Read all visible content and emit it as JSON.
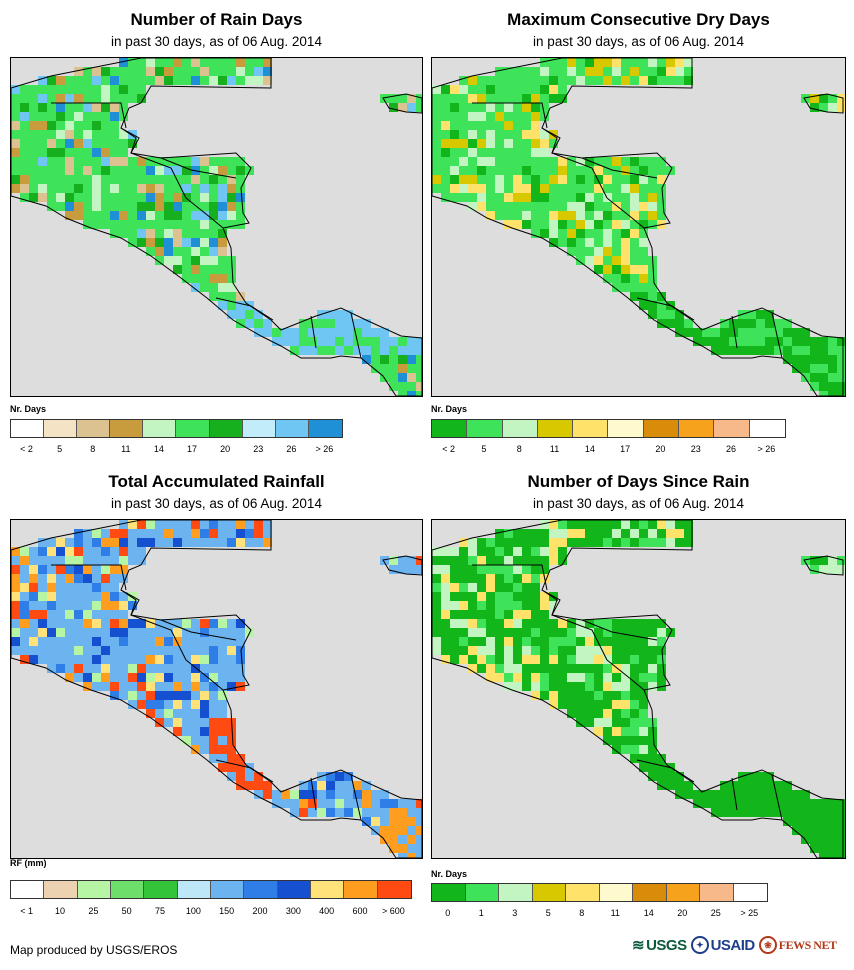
{
  "panels": [
    {
      "title": "Number of Rain Days",
      "subtitle": "in past 30 days, as of 06 Aug. 2014",
      "legend_title": "Nr. Days",
      "legend_colors": [
        "#ffffff",
        "#f4e3c4",
        "#dcc290",
        "#c89b3c",
        "#c3f5c3",
        "#3fe35a",
        "#16b01f",
        "#c3ecfa",
        "#6fc6f2",
        "#1f8fd6"
      ],
      "legend_ticks": [
        "< 2",
        "5",
        "8",
        "11",
        "14",
        "17",
        "20",
        "23",
        "26",
        "> 26"
      ],
      "base_color": "#3fe35a",
      "accent_colors": [
        "#c3f5c3",
        "#c89b3c",
        "#dcc290",
        "#16b01f",
        "#6fc6f2",
        "#1f8fd6"
      ]
    },
    {
      "title": "Maximum Consecutive Dry Days",
      "subtitle": "in past 30 days, as of 06 Aug. 2014",
      "legend_title": "Nr. Days",
      "legend_colors": [
        "#12b51a",
        "#3fe35a",
        "#c3f5c3",
        "#d8c800",
        "#ffe26a",
        "#fffacd",
        "#d98c0a",
        "#f7a21c",
        "#f8b98a",
        "#ffffff"
      ],
      "legend_ticks": [
        "< 2",
        "5",
        "8",
        "11",
        "14",
        "17",
        "20",
        "23",
        "26",
        "> 26"
      ],
      "base_color": "#3fe35a",
      "accent_colors": [
        "#c3f5c3",
        "#12b51a",
        "#ffe26a",
        "#d8c800"
      ]
    },
    {
      "title": "Total Accumulated Rainfall",
      "subtitle": "in past 30 days, as of 06 Aug. 2014",
      "legend_title": "RF (mm)",
      "legend_colors": [
        "#ffffff",
        "#ecd2b0",
        "#b6f5a3",
        "#6ede6a",
        "#33c43a",
        "#bde6f7",
        "#6cb4f0",
        "#2f7ee8",
        "#1450cf",
        "#ffe27a",
        "#ff9d1e",
        "#ff4a12"
      ],
      "legend_ticks": [
        "< 1",
        "10",
        "25",
        "50",
        "75",
        "100",
        "150",
        "200",
        "300",
        "400",
        "600",
        "> 600"
      ],
      "base_color": "#6cb4f0",
      "accent_colors": [
        "#2f7ee8",
        "#1450cf",
        "#ffe27a",
        "#ff9d1e",
        "#ff4a12",
        "#b6f5a3"
      ]
    },
    {
      "title": "Number of Days Since Rain",
      "subtitle": "in past 30 days, as of 06 Aug. 2014",
      "legend_title": "Nr. Days",
      "legend_colors": [
        "#12b51a",
        "#3fe35a",
        "#c3f5c3",
        "#d8c800",
        "#ffe26a",
        "#fffacd",
        "#d98c0a",
        "#f7a21c",
        "#f8b98a",
        "#ffffff"
      ],
      "legend_ticks": [
        "0",
        "1",
        "3",
        "5",
        "8",
        "11",
        "14",
        "20",
        "25",
        "> 25"
      ],
      "base_color": "#12b51a",
      "accent_colors": [
        "#3fe35a",
        "#c3f5c3",
        "#ffe26a"
      ]
    }
  ],
  "footer": "Map produced by USGS/EROS",
  "logos": [
    "USGS",
    "USAID",
    "FEWS NET"
  ]
}
